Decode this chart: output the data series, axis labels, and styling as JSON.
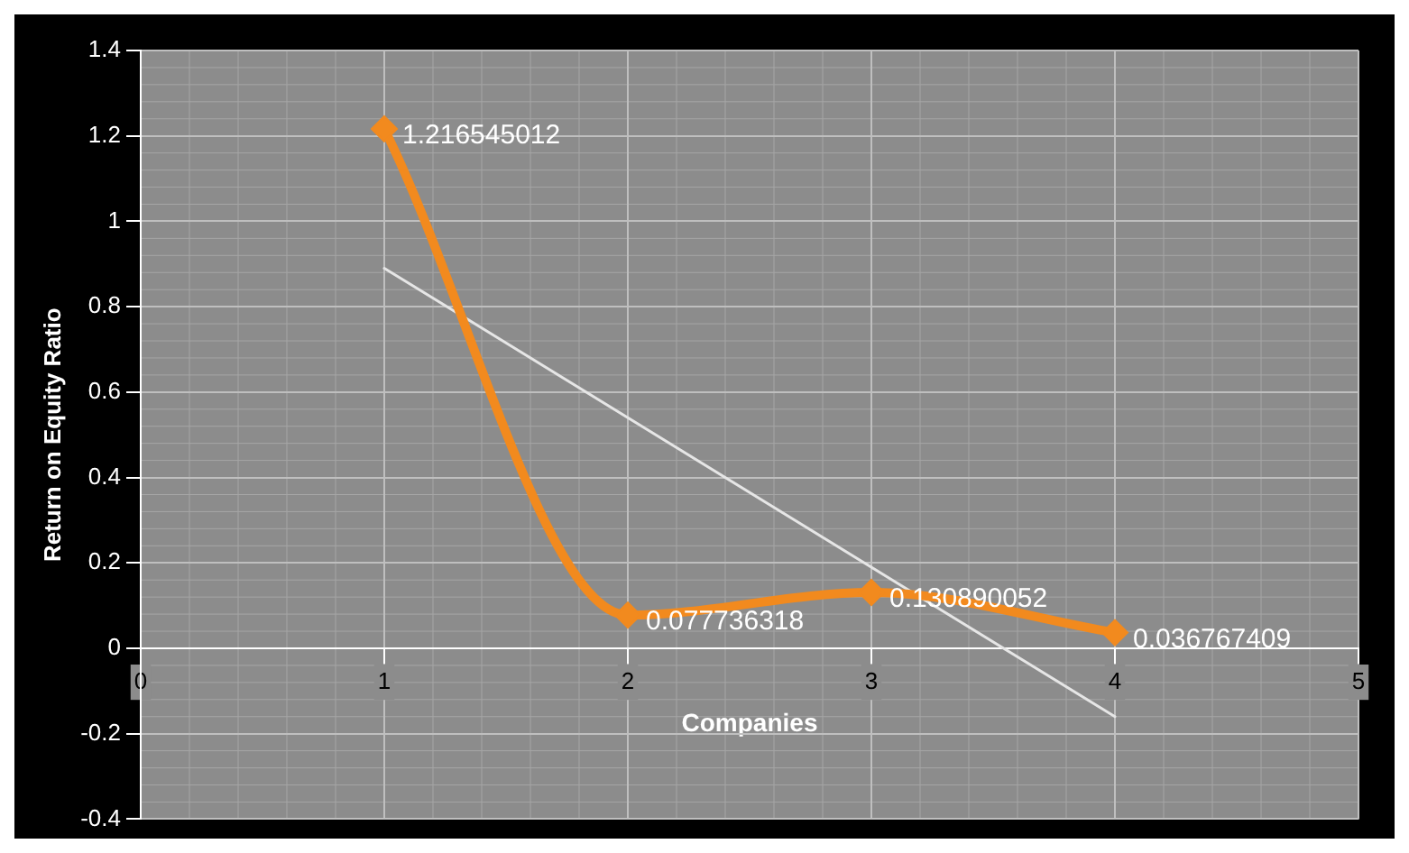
{
  "chart_data": {
    "type": "line",
    "xlabel": "Companies",
    "ylabel": "Return on Equity Ratio",
    "xlim": [
      0,
      5
    ],
    "xticks": [
      0,
      1,
      2,
      3,
      4,
      5
    ],
    "ylim": [
      -0.4,
      1.4
    ],
    "yticks": [
      -0.4,
      -0.2,
      0,
      0.2,
      0.4,
      0.6,
      0.8,
      1,
      1.2,
      1.4
    ],
    "grid": true,
    "legend": false,
    "marker": "diamond",
    "line_style": "solid",
    "x": [
      1,
      2,
      3,
      4
    ],
    "series": [
      {
        "color": "#f28a1e",
        "values": [
          1.216545012,
          0.077736318,
          0.130890052,
          0.036767409
        ],
        "value_labels": [
          "1.216545012",
          "0.077736318",
          "0.130890052",
          "0.036767409"
        ]
      },
      {
        "type": "line",
        "color": "#e6e6e6",
        "marker": "none",
        "x": [
          1,
          4
        ],
        "values": [
          0.89,
          -0.16
        ]
      }
    ]
  }
}
